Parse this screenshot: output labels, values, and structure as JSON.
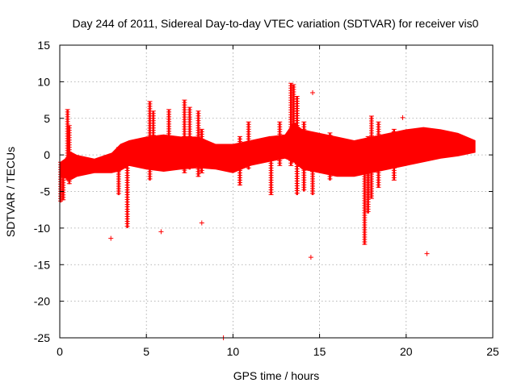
{
  "chart_data": {
    "type": "scatter",
    "title": "Day 244 of 2011, Sidereal Day-to-day VTEC variation (SDTVAR) for receiver vis0",
    "xlabel": "GPS time / hours",
    "ylabel": "SDTVAR / TECUs",
    "xlim": [
      0,
      25
    ],
    "ylim": [
      -25,
      15
    ],
    "xticks": [
      0,
      5,
      10,
      15,
      20,
      25
    ],
    "yticks": [
      -25,
      -20,
      -15,
      -10,
      -5,
      0,
      5,
      10,
      15
    ],
    "xtick_labels": [
      "0",
      "5",
      "10",
      "15",
      "20",
      "25"
    ],
    "ytick_labels": [
      "-25",
      "-20",
      "-15",
      "-10",
      "-5",
      "0",
      "5",
      "10",
      "15"
    ],
    "grid": true,
    "marker": "+",
    "series_color": "#ff0000",
    "envelope": {
      "description": "dense band of points, hour vs. lower/upper SDTVAR bounds",
      "x": [
        0.0,
        0.3,
        0.6,
        1.0,
        2.0,
        3.0,
        3.5,
        4.0,
        5.0,
        6.0,
        7.0,
        8.0,
        9.0,
        10.0,
        11.0,
        12.0,
        13.0,
        13.5,
        14.0,
        15.0,
        16.0,
        17.0,
        18.0,
        19.0,
        20.0,
        21.0,
        22.0,
        23.0,
        24.0
      ],
      "lower": [
        -3.0,
        -3.2,
        -3.5,
        -3.0,
        -2.5,
        -2.5,
        -2.2,
        -1.5,
        -2.0,
        -2.3,
        -2.0,
        -1.8,
        -2.0,
        -2.5,
        -1.5,
        -1.0,
        -0.5,
        -1.0,
        -2.0,
        -2.5,
        -3.0,
        -3.0,
        -2.5,
        -2.0,
        -1.5,
        -1.0,
        -0.5,
        -0.2,
        0.3
      ],
      "upper": [
        -1.0,
        -0.5,
        0.5,
        0.0,
        -0.5,
        0.3,
        1.5,
        2.0,
        2.5,
        2.8,
        2.5,
        2.5,
        1.5,
        1.5,
        2.0,
        2.5,
        2.8,
        4.5,
        3.5,
        3.0,
        2.5,
        2.0,
        2.5,
        3.0,
        3.5,
        3.8,
        3.5,
        3.0,
        2.0
      ]
    },
    "spikes": [
      {
        "x": 0.05,
        "min": -6.5,
        "max": -1.0
      },
      {
        "x": 0.2,
        "min": -6.2,
        "max": -1.5
      },
      {
        "x": 0.45,
        "min": -3.5,
        "max": 6.2
      },
      {
        "x": 0.55,
        "min": -4.0,
        "max": 4.0
      },
      {
        "x": 3.4,
        "min": -5.5,
        "max": 1.0
      },
      {
        "x": 3.9,
        "min": -10.0,
        "max": 1.5
      },
      {
        "x": 5.2,
        "min": -3.5,
        "max": 7.3
      },
      {
        "x": 5.4,
        "min": -2.0,
        "max": 6.0
      },
      {
        "x": 6.3,
        "min": -2.0,
        "max": 6.2
      },
      {
        "x": 7.2,
        "min": -2.5,
        "max": 7.5
      },
      {
        "x": 7.5,
        "min": -2.0,
        "max": 6.5
      },
      {
        "x": 8.0,
        "min": -3.0,
        "max": 6.0
      },
      {
        "x": 8.2,
        "min": -2.5,
        "max": 3.5
      },
      {
        "x": 10.4,
        "min": -4.2,
        "max": 2.5
      },
      {
        "x": 10.9,
        "min": -2.0,
        "max": 4.5
      },
      {
        "x": 12.2,
        "min": -5.5,
        "max": 2.5
      },
      {
        "x": 12.7,
        "min": -1.5,
        "max": 4.5
      },
      {
        "x": 13.35,
        "min": -1.5,
        "max": 9.8
      },
      {
        "x": 13.5,
        "min": -1.0,
        "max": 9.6
      },
      {
        "x": 13.7,
        "min": -5.5,
        "max": 8.0
      },
      {
        "x": 14.1,
        "min": -5.0,
        "max": 4.5
      },
      {
        "x": 14.6,
        "min": -5.5,
        "max": 3.0
      },
      {
        "x": 15.6,
        "min": -3.5,
        "max": 3.0
      },
      {
        "x": 17.6,
        "min": -12.3,
        "max": 2.0
      },
      {
        "x": 17.8,
        "min": -8.0,
        "max": 2.5
      },
      {
        "x": 18.0,
        "min": -6.0,
        "max": 5.3
      },
      {
        "x": 18.4,
        "min": -4.5,
        "max": 4.5
      },
      {
        "x": 19.3,
        "min": -3.5,
        "max": 3.5
      }
    ],
    "outliers": [
      {
        "x": 2.95,
        "y": -11.4
      },
      {
        "x": 5.85,
        "y": -10.5
      },
      {
        "x": 8.2,
        "y": -9.3
      },
      {
        "x": 9.45,
        "y": -25.0
      },
      {
        "x": 14.5,
        "y": -14.0
      },
      {
        "x": 14.6,
        "y": 8.5
      },
      {
        "x": 19.8,
        "y": 5.1
      },
      {
        "x": 21.2,
        "y": -13.5
      }
    ]
  }
}
